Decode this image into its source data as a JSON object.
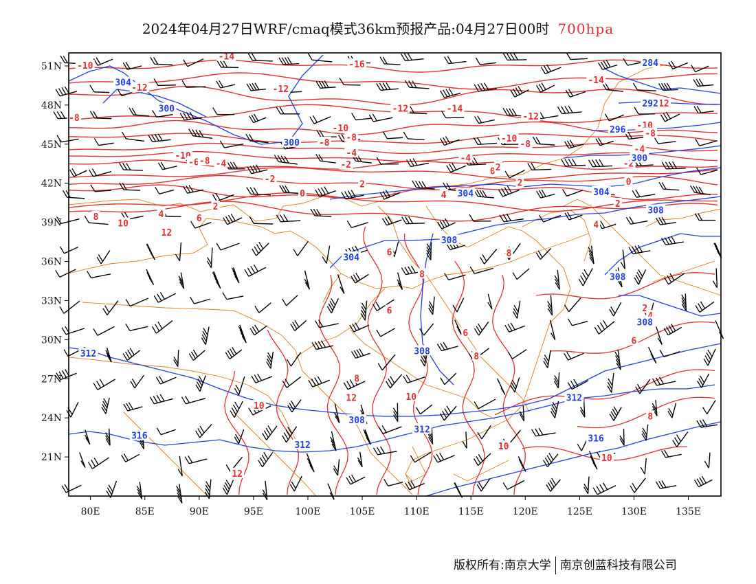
{
  "title": {
    "main": "2024年04月27日WRF/cmaq模式36km预报产品:04月27日00时",
    "level": "700hpa",
    "level_color": "#e03030"
  },
  "footer": {
    "left": "版权所有:南京大学",
    "right": "南京创蓝科技有限公司"
  },
  "map": {
    "lon_range": [
      78,
      138
    ],
    "lat_range": [
      18,
      52
    ],
    "lon_ticks": [
      "80E",
      "85E",
      "90E",
      "95E",
      "100E",
      "105E",
      "110E",
      "115E",
      "120E",
      "125E",
      "130E",
      "135E"
    ],
    "lat_ticks": [
      "51N",
      "48N",
      "45N",
      "42N",
      "39N",
      "36N",
      "33N",
      "30N",
      "27N",
      "24N",
      "21N"
    ],
    "colors": {
      "temperature": "#e03030",
      "geopotential": "#2040e0",
      "boundaries": "#e08020",
      "wind": "#000000"
    },
    "temperature_labels": [
      {
        "text": "-10",
        "lon": 79.5,
        "lat": 51.0
      },
      {
        "text": "-14",
        "lon": 92.5,
        "lat": 51.7
      },
      {
        "text": "-16",
        "lon": 104.5,
        "lat": 51.1
      },
      {
        "text": "-12",
        "lon": 84.5,
        "lat": 49.3
      },
      {
        "text": "-12",
        "lon": 97.5,
        "lat": 49.2
      },
      {
        "text": "-12",
        "lon": 108.5,
        "lat": 47.7
      },
      {
        "text": "-14",
        "lon": 113.5,
        "lat": 47.7
      },
      {
        "text": "-14",
        "lon": 126.5,
        "lat": 49.9
      },
      {
        "text": "-12",
        "lon": 120.5,
        "lat": 47.1
      },
      {
        "text": "-12",
        "lon": 132.5,
        "lat": 48.1
      },
      {
        "text": "-8",
        "lon": 78.5,
        "lat": 47.0
      },
      {
        "text": "-10",
        "lon": 103.0,
        "lat": 46.2
      },
      {
        "text": "-10",
        "lon": 131.0,
        "lat": 46.4
      },
      {
        "text": "-8",
        "lon": 104.0,
        "lat": 45.5
      },
      {
        "text": "-8",
        "lon": 101.5,
        "lat": 45.1
      },
      {
        "text": "-8",
        "lon": 120.0,
        "lat": 45.0
      },
      {
        "text": "-8",
        "lon": 131.5,
        "lat": 45.8
      },
      {
        "text": "-10",
        "lon": 118.5,
        "lat": 45.4
      },
      {
        "text": "-10",
        "lon": 88.5,
        "lat": 44.1
      },
      {
        "text": "-6",
        "lon": 89.5,
        "lat": 43.6
      },
      {
        "text": "-8",
        "lon": 90.5,
        "lat": 43.7
      },
      {
        "text": "-4",
        "lon": 92.0,
        "lat": 43.5
      },
      {
        "text": "-4",
        "lon": 104.0,
        "lat": 44.3
      },
      {
        "text": "-2",
        "lon": 103.5,
        "lat": 43.4
      },
      {
        "text": "-4",
        "lon": 114.5,
        "lat": 43.9
      },
      {
        "text": "-4",
        "lon": 130.5,
        "lat": 44.6
      },
      {
        "text": "-2",
        "lon": 129.5,
        "lat": 43.5
      },
      {
        "text": "0",
        "lon": 117.0,
        "lat": 42.9
      },
      {
        "text": "2",
        "lon": 117.5,
        "lat": 43.2
      },
      {
        "text": "-2",
        "lon": 96.5,
        "lat": 42.3
      },
      {
        "text": "0",
        "lon": 99.5,
        "lat": 41.2
      },
      {
        "text": "2",
        "lon": 105.0,
        "lat": 41.9
      },
      {
        "text": "2",
        "lon": 119.5,
        "lat": 42.0
      },
      {
        "text": "4",
        "lon": 112.5,
        "lat": 41.1
      },
      {
        "text": "0",
        "lon": 129.5,
        "lat": 42.1
      },
      {
        "text": "2",
        "lon": 128.5,
        "lat": 40.4
      },
      {
        "text": "2",
        "lon": 91.5,
        "lat": 40.2
      },
      {
        "text": "4",
        "lon": 86.5,
        "lat": 39.6
      },
      {
        "text": "6",
        "lon": 90.0,
        "lat": 39.3
      },
      {
        "text": "8",
        "lon": 80.5,
        "lat": 39.4
      },
      {
        "text": "10",
        "lon": 83.0,
        "lat": 38.9
      },
      {
        "text": "12",
        "lon": 87.0,
        "lat": 38.2
      },
      {
        "text": "4",
        "lon": 126.5,
        "lat": 38.8
      },
      {
        "text": "6",
        "lon": 107.5,
        "lat": 36.7
      },
      {
        "text": "8",
        "lon": 118.5,
        "lat": 36.6
      },
      {
        "text": "8",
        "lon": 110.5,
        "lat": 35.0
      },
      {
        "text": "6",
        "lon": 107.5,
        "lat": 32.2
      },
      {
        "text": "2",
        "lon": 131.0,
        "lat": 32.4
      },
      {
        "text": "4",
        "lon": 131.5,
        "lat": 31.8
      },
      {
        "text": "6",
        "lon": 114.5,
        "lat": 30.5
      },
      {
        "text": "6",
        "lon": 130.0,
        "lat": 29.9
      },
      {
        "text": "8",
        "lon": 115.5,
        "lat": 28.7
      },
      {
        "text": "8",
        "lon": 104.5,
        "lat": 27.0
      },
      {
        "text": "12",
        "lon": 104.0,
        "lat": 25.5
      },
      {
        "text": "10",
        "lon": 109.5,
        "lat": 25.6
      },
      {
        "text": "10",
        "lon": 95.5,
        "lat": 24.9
      },
      {
        "text": "8",
        "lon": 131.5,
        "lat": 24.1
      },
      {
        "text": "10",
        "lon": 118.0,
        "lat": 21.8
      },
      {
        "text": "10",
        "lon": 127.5,
        "lat": 20.9
      },
      {
        "text": "12",
        "lon": 93.5,
        "lat": 19.7
      }
    ],
    "height_labels": [
      {
        "text": "304",
        "lon": 83.0,
        "lat": 49.7
      },
      {
        "text": "300",
        "lon": 87.0,
        "lat": 47.7
      },
      {
        "text": "300",
        "lon": 98.5,
        "lat": 45.1
      },
      {
        "text": "284",
        "lon": 131.5,
        "lat": 51.2
      },
      {
        "text": "292",
        "lon": 131.5,
        "lat": 48.1
      },
      {
        "text": "296",
        "lon": 128.5,
        "lat": 46.1
      },
      {
        "text": "300",
        "lon": 130.5,
        "lat": 43.9
      },
      {
        "text": "304",
        "lon": 114.5,
        "lat": 41.2
      },
      {
        "text": "304",
        "lon": 127.0,
        "lat": 41.3
      },
      {
        "text": "308",
        "lon": 132.0,
        "lat": 39.9
      },
      {
        "text": "308",
        "lon": 113.0,
        "lat": 37.6
      },
      {
        "text": "304",
        "lon": 104.0,
        "lat": 36.3
      },
      {
        "text": "308",
        "lon": 128.5,
        "lat": 34.8
      },
      {
        "text": "308",
        "lon": 131.0,
        "lat": 31.3
      },
      {
        "text": "308",
        "lon": 110.5,
        "lat": 29.1
      },
      {
        "text": "312",
        "lon": 79.8,
        "lat": 28.9
      },
      {
        "text": "312",
        "lon": 124.5,
        "lat": 25.5
      },
      {
        "text": "308",
        "lon": 104.5,
        "lat": 23.8
      },
      {
        "text": "312",
        "lon": 110.5,
        "lat": 23.1
      },
      {
        "text": "316",
        "lon": 84.5,
        "lat": 22.6
      },
      {
        "text": "316",
        "lon": 126.5,
        "lat": 22.4
      },
      {
        "text": "312",
        "lon": 99.5,
        "lat": 21.9
      }
    ]
  }
}
